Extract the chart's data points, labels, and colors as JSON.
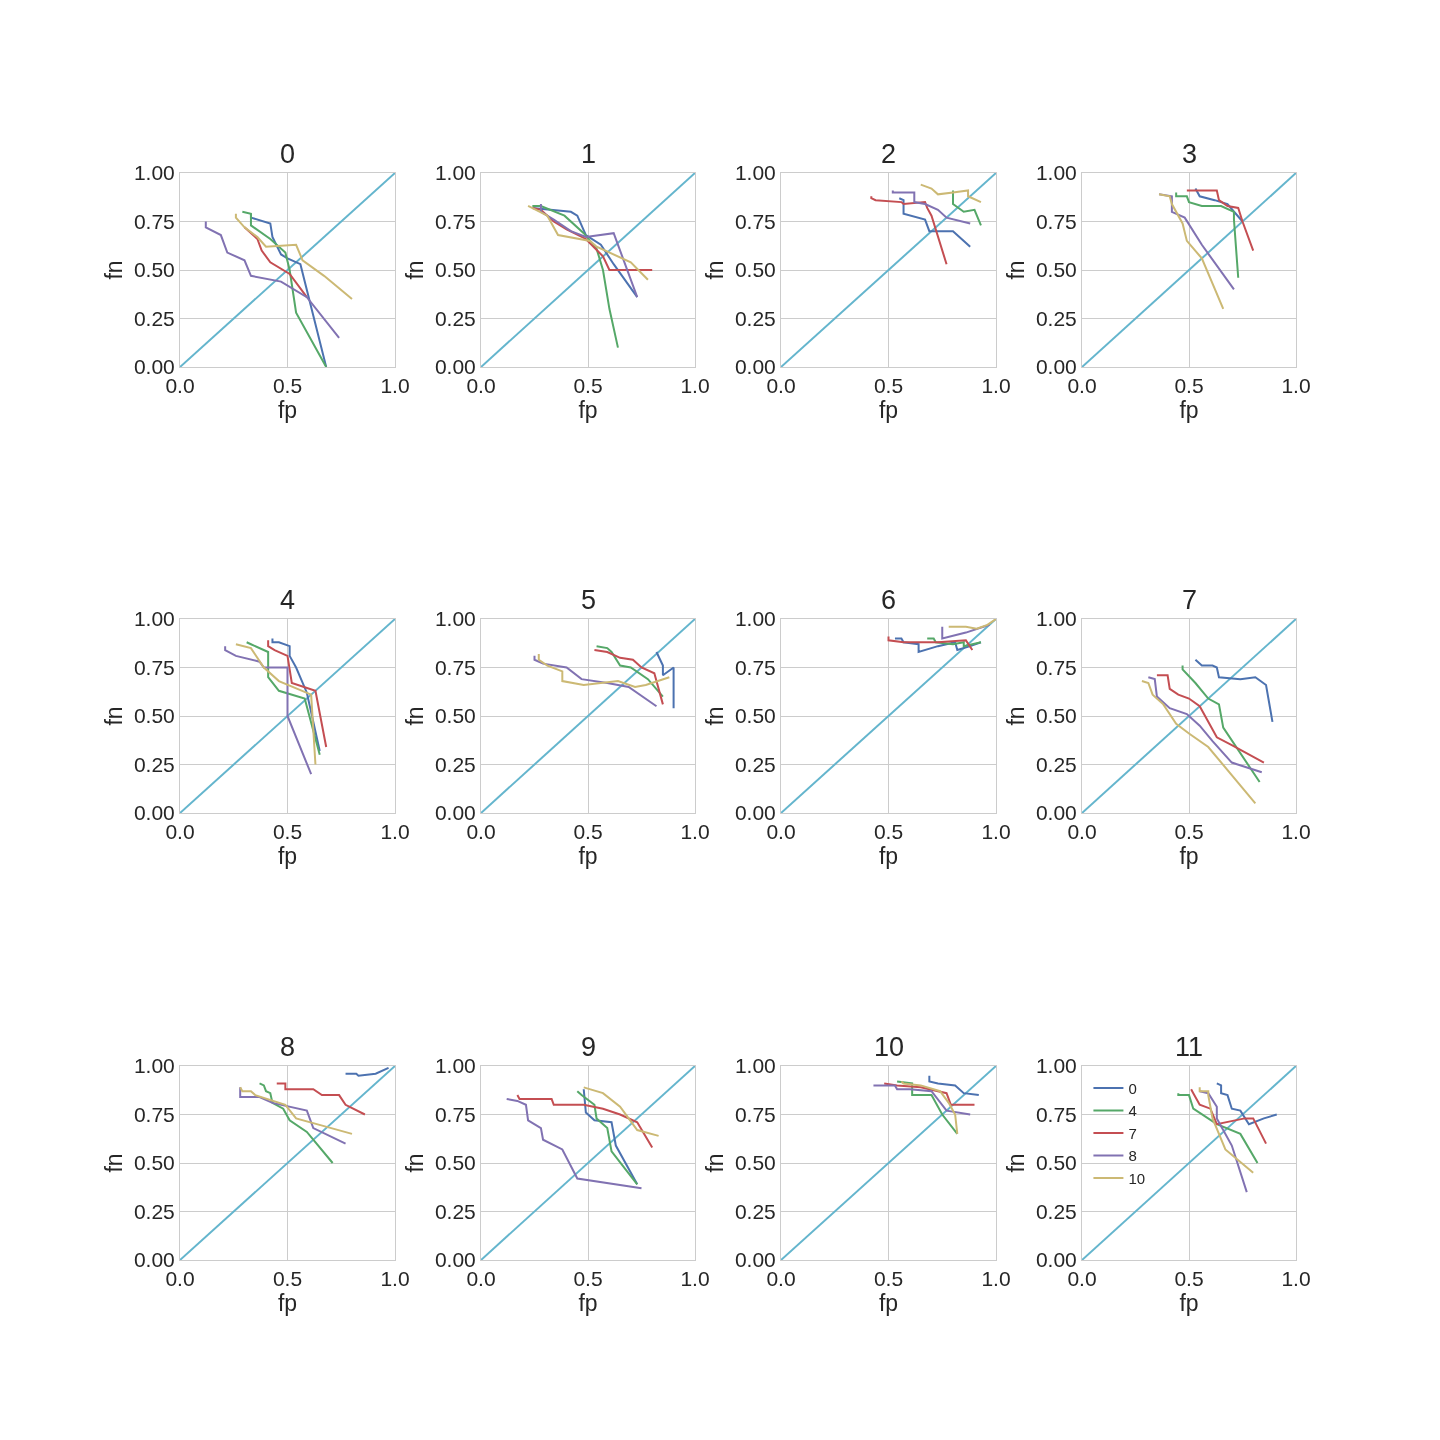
{
  "chart_data": [
    {
      "type": "line",
      "title": "0",
      "xlabel": "fp",
      "ylabel": "fn",
      "xlim": [
        0,
        1
      ],
      "ylim": [
        0,
        1
      ],
      "xticks": [
        {
          "value": 0,
          "label": "0.0"
        },
        {
          "value": 0.5,
          "label": "0.5"
        },
        {
          "value": 1,
          "label": "1.0"
        }
      ],
      "yticks": [
        {
          "value": 0,
          "label": "0.00"
        },
        {
          "value": 0.25,
          "label": "0.25"
        },
        {
          "value": 0.5,
          "label": "0.50"
        },
        {
          "value": 0.75,
          "label": "0.75"
        },
        {
          "value": 1,
          "label": "1.00"
        }
      ],
      "grid": true,
      "series": [
        {
          "color": "#64b5cd",
          "x": [
            0,
            1
          ],
          "values": [
            0,
            1
          ]
        },
        {
          "color": "#4c72b0",
          "x": [
            0.33,
            0.33,
            0.42,
            0.43,
            0.47,
            0.5,
            0.56,
            0.68
          ],
          "values": [
            0.79,
            0.77,
            0.74,
            0.67,
            0.58,
            0.56,
            0.53,
            0.0
          ]
        },
        {
          "color": "#55a868",
          "x": [
            0.29,
            0.33,
            0.33,
            0.42,
            0.49,
            0.51,
            0.54,
            0.68
          ],
          "values": [
            0.8,
            0.79,
            0.73,
            0.66,
            0.59,
            0.5,
            0.28,
            0.0
          ]
        },
        {
          "color": "#c44e52",
          "x": [
            0.3,
            0.36,
            0.38,
            0.42,
            0.51,
            0.59
          ],
          "values": [
            0.72,
            0.66,
            0.6,
            0.54,
            0.48,
            0.36
          ]
        },
        {
          "color": "#8172b2",
          "x": [
            0.12,
            0.12,
            0.19,
            0.22,
            0.3,
            0.33,
            0.47,
            0.59,
            0.74
          ],
          "values": [
            0.75,
            0.72,
            0.68,
            0.59,
            0.55,
            0.47,
            0.44,
            0.36,
            0.15
          ]
        },
        {
          "color": "#ccb974",
          "x": [
            0.26,
            0.26,
            0.3,
            0.36,
            0.4,
            0.54,
            0.57,
            0.67,
            0.8
          ],
          "values": [
            0.79,
            0.77,
            0.72,
            0.67,
            0.62,
            0.63,
            0.55,
            0.47,
            0.35
          ]
        }
      ]
    },
    {
      "type": "line",
      "title": "1",
      "xlabel": "fp",
      "ylabel": "fn",
      "xlim": [
        0,
        1
      ],
      "ylim": [
        0,
        1
      ],
      "xticks": [
        {
          "value": 0,
          "label": "0.0"
        },
        {
          "value": 0.5,
          "label": "0.5"
        },
        {
          "value": 1,
          "label": "1.0"
        }
      ],
      "yticks": [
        {
          "value": 0,
          "label": "0.00"
        },
        {
          "value": 0.25,
          "label": "0.25"
        },
        {
          "value": 0.5,
          "label": "0.50"
        },
        {
          "value": 0.75,
          "label": "0.75"
        },
        {
          "value": 1,
          "label": "1.00"
        }
      ],
      "grid": true,
      "series": [
        {
          "color": "#64b5cd",
          "x": [
            0,
            1
          ],
          "values": [
            0,
            1
          ]
        },
        {
          "color": "#4c72b0",
          "x": [
            0.24,
            0.42,
            0.45,
            0.49,
            0.56,
            0.62,
            0.73
          ],
          "values": [
            0.82,
            0.8,
            0.78,
            0.68,
            0.63,
            0.53,
            0.36
          ]
        },
        {
          "color": "#55a868",
          "x": [
            0.24,
            0.28,
            0.39,
            0.48,
            0.54,
            0.57,
            0.6,
            0.64
          ],
          "values": [
            0.83,
            0.83,
            0.78,
            0.69,
            0.61,
            0.5,
            0.3,
            0.1
          ]
        },
        {
          "color": "#c44e52",
          "x": [
            0.24,
            0.28,
            0.34,
            0.4,
            0.49,
            0.57,
            0.6,
            0.8
          ],
          "values": [
            0.82,
            0.81,
            0.75,
            0.71,
            0.66,
            0.57,
            0.5,
            0.5
          ]
        },
        {
          "color": "#8172b2",
          "x": [
            0.28,
            0.28,
            0.34,
            0.42,
            0.49,
            0.62,
            0.73
          ],
          "values": [
            0.84,
            0.8,
            0.76,
            0.7,
            0.67,
            0.69,
            0.36
          ]
        },
        {
          "color": "#ccb974",
          "x": [
            0.22,
            0.31,
            0.36,
            0.51,
            0.54,
            0.7,
            0.78
          ],
          "values": [
            0.83,
            0.78,
            0.68,
            0.65,
            0.62,
            0.54,
            0.45
          ]
        }
      ]
    },
    {
      "type": "line",
      "title": "2",
      "xlabel": "fp",
      "ylabel": "fn",
      "xlim": [
        0,
        1
      ],
      "ylim": [
        0,
        1
      ],
      "xticks": [
        {
          "value": 0,
          "label": "0.0"
        },
        {
          "value": 0.5,
          "label": "0.5"
        },
        {
          "value": 1,
          "label": "1.0"
        }
      ],
      "yticks": [
        {
          "value": 0,
          "label": "0.00"
        },
        {
          "value": 0.25,
          "label": "0.25"
        },
        {
          "value": 0.5,
          "label": "0.50"
        },
        {
          "value": 0.75,
          "label": "0.75"
        },
        {
          "value": 1,
          "label": "1.00"
        }
      ],
      "grid": true,
      "series": [
        {
          "color": "#64b5cd",
          "x": [
            0,
            1
          ],
          "values": [
            0,
            1
          ]
        },
        {
          "color": "#4c72b0",
          "x": [
            0.55,
            0.57,
            0.57,
            0.67,
            0.69,
            0.8,
            0.88
          ],
          "values": [
            0.87,
            0.86,
            0.79,
            0.76,
            0.7,
            0.7,
            0.62
          ]
        },
        {
          "color": "#55a868",
          "x": [
            0.8,
            0.8,
            0.85,
            0.9,
            0.93
          ],
          "values": [
            0.91,
            0.84,
            0.8,
            0.81,
            0.73
          ]
        },
        {
          "color": "#c44e52",
          "x": [
            0.42,
            0.42,
            0.44,
            0.56,
            0.57,
            0.67,
            0.68,
            0.7,
            0.77
          ],
          "values": [
            0.88,
            0.87,
            0.86,
            0.85,
            0.84,
            0.85,
            0.82,
            0.78,
            0.53
          ]
        },
        {
          "color": "#8172b2",
          "x": [
            0.52,
            0.52,
            0.62,
            0.62,
            0.67,
            0.73,
            0.77,
            0.88
          ],
          "values": [
            0.91,
            0.9,
            0.9,
            0.85,
            0.84,
            0.81,
            0.77,
            0.74
          ]
        },
        {
          "color": "#ccb974",
          "x": [
            0.65,
            0.7,
            0.73,
            0.8,
            0.87,
            0.87,
            0.93
          ],
          "values": [
            0.94,
            0.92,
            0.89,
            0.9,
            0.91,
            0.88,
            0.85
          ]
        }
      ]
    },
    {
      "type": "line",
      "title": "3",
      "xlabel": "fp",
      "ylabel": "fn",
      "xlim": [
        0,
        1
      ],
      "ylim": [
        0,
        1
      ],
      "xticks": [
        {
          "value": 0,
          "label": "0.0"
        },
        {
          "value": 0.5,
          "label": "0.5"
        },
        {
          "value": 1,
          "label": "1.0"
        }
      ],
      "yticks": [
        {
          "value": 0,
          "label": "0.00"
        },
        {
          "value": 0.25,
          "label": "0.25"
        },
        {
          "value": 0.5,
          "label": "0.50"
        },
        {
          "value": 0.75,
          "label": "0.75"
        },
        {
          "value": 1,
          "label": "1.00"
        }
      ],
      "grid": true,
      "series": [
        {
          "color": "#64b5cd",
          "x": [
            0,
            1
          ],
          "values": [
            0,
            1
          ]
        },
        {
          "color": "#4c72b0",
          "x": [
            0.53,
            0.55,
            0.62,
            0.68,
            0.75
          ],
          "values": [
            0.92,
            0.88,
            0.86,
            0.84,
            0.75
          ]
        },
        {
          "color": "#55a868",
          "x": [
            0.44,
            0.44,
            0.49,
            0.5,
            0.56,
            0.65,
            0.71,
            0.71,
            0.73
          ],
          "values": [
            0.9,
            0.88,
            0.88,
            0.85,
            0.83,
            0.83,
            0.8,
            0.76,
            0.46
          ]
        },
        {
          "color": "#c44e52",
          "x": [
            0.49,
            0.63,
            0.64,
            0.68,
            0.73,
            0.75,
            0.8
          ],
          "values": [
            0.91,
            0.91,
            0.86,
            0.83,
            0.82,
            0.75,
            0.6
          ]
        },
        {
          "color": "#8172b2",
          "x": [
            0.36,
            0.42,
            0.42,
            0.48,
            0.56,
            0.71
          ],
          "values": [
            0.89,
            0.88,
            0.8,
            0.77,
            0.63,
            0.4
          ]
        },
        {
          "color": "#ccb974",
          "x": [
            0.36,
            0.41,
            0.42,
            0.47,
            0.49,
            0.56,
            0.66
          ],
          "values": [
            0.89,
            0.88,
            0.84,
            0.74,
            0.65,
            0.56,
            0.3
          ]
        }
      ]
    },
    {
      "type": "line",
      "title": "4",
      "xlabel": "fp",
      "ylabel": "fn",
      "xlim": [
        0,
        1
      ],
      "ylim": [
        0,
        1
      ],
      "xticks": [
        {
          "value": 0,
          "label": "0.0"
        },
        {
          "value": 0.5,
          "label": "0.5"
        },
        {
          "value": 1,
          "label": "1.0"
        }
      ],
      "yticks": [
        {
          "value": 0,
          "label": "0.00"
        },
        {
          "value": 0.25,
          "label": "0.25"
        },
        {
          "value": 0.5,
          "label": "0.50"
        },
        {
          "value": 0.75,
          "label": "0.75"
        },
        {
          "value": 1,
          "label": "1.00"
        }
      ],
      "grid": true,
      "series": [
        {
          "color": "#64b5cd",
          "x": [
            0,
            1
          ],
          "values": [
            0,
            1
          ]
        },
        {
          "color": "#4c72b0",
          "x": [
            0.43,
            0.43,
            0.46,
            0.51,
            0.51,
            0.54,
            0.59,
            0.65
          ],
          "values": [
            0.9,
            0.88,
            0.88,
            0.86,
            0.81,
            0.75,
            0.62,
            0.32
          ]
        },
        {
          "color": "#55a868",
          "x": [
            0.31,
            0.33,
            0.41,
            0.41,
            0.46,
            0.58,
            0.65
          ],
          "values": [
            0.88,
            0.87,
            0.83,
            0.7,
            0.63,
            0.59,
            0.3
          ]
        },
        {
          "color": "#c44e52",
          "x": [
            0.41,
            0.41,
            0.44,
            0.5,
            0.52,
            0.63,
            0.68
          ],
          "values": [
            0.89,
            0.86,
            0.84,
            0.81,
            0.67,
            0.63,
            0.34
          ]
        },
        {
          "color": "#8172b2",
          "x": [
            0.21,
            0.21,
            0.26,
            0.37,
            0.39,
            0.5,
            0.5,
            0.61
          ],
          "values": [
            0.86,
            0.84,
            0.81,
            0.78,
            0.75,
            0.75,
            0.5,
            0.2
          ]
        },
        {
          "color": "#ccb974",
          "x": [
            0.26,
            0.33,
            0.39,
            0.46,
            0.61,
            0.63
          ],
          "values": [
            0.87,
            0.85,
            0.75,
            0.68,
            0.61,
            0.25
          ]
        }
      ]
    },
    {
      "type": "line",
      "title": "5",
      "xlabel": "fp",
      "ylabel": "fn",
      "xlim": [
        0,
        1
      ],
      "ylim": [
        0,
        1
      ],
      "xticks": [
        {
          "value": 0,
          "label": "0.0"
        },
        {
          "value": 0.5,
          "label": "0.5"
        },
        {
          "value": 1,
          "label": "1.0"
        }
      ],
      "yticks": [
        {
          "value": 0,
          "label": "0.00"
        },
        {
          "value": 0.25,
          "label": "0.25"
        },
        {
          "value": 0.5,
          "label": "0.50"
        },
        {
          "value": 0.75,
          "label": "0.75"
        },
        {
          "value": 1,
          "label": "1.00"
        }
      ],
      "grid": true,
      "series": [
        {
          "color": "#64b5cd",
          "x": [
            0,
            1
          ],
          "values": [
            0,
            1
          ]
        },
        {
          "color": "#4c72b0",
          "x": [
            0.82,
            0.85,
            0.85,
            0.9,
            0.9
          ],
          "values": [
            0.83,
            0.76,
            0.71,
            0.75,
            0.54
          ]
        },
        {
          "color": "#55a868",
          "x": [
            0.54,
            0.59,
            0.61,
            0.65,
            0.7,
            0.78,
            0.85
          ],
          "values": [
            0.86,
            0.85,
            0.83,
            0.76,
            0.75,
            0.69,
            0.6
          ]
        },
        {
          "color": "#c44e52",
          "x": [
            0.53,
            0.59,
            0.65,
            0.71,
            0.75,
            0.81,
            0.85
          ],
          "values": [
            0.84,
            0.83,
            0.8,
            0.79,
            0.75,
            0.72,
            0.56
          ]
        },
        {
          "color": "#8172b2",
          "x": [
            0.25,
            0.25,
            0.29,
            0.4,
            0.47,
            0.59,
            0.69,
            0.82
          ],
          "values": [
            0.81,
            0.79,
            0.77,
            0.75,
            0.69,
            0.67,
            0.65,
            0.55
          ]
        },
        {
          "color": "#ccb974",
          "x": [
            0.27,
            0.27,
            0.31,
            0.38,
            0.38,
            0.48,
            0.64,
            0.72,
            0.77,
            0.88
          ],
          "values": [
            0.82,
            0.79,
            0.76,
            0.73,
            0.68,
            0.66,
            0.68,
            0.65,
            0.66,
            0.7
          ]
        }
      ]
    },
    {
      "type": "line",
      "title": "6",
      "xlabel": "fp",
      "ylabel": "fn",
      "xlim": [
        0,
        1
      ],
      "ylim": [
        0,
        1
      ],
      "xticks": [
        {
          "value": 0,
          "label": "0.0"
        },
        {
          "value": 0.5,
          "label": "0.5"
        },
        {
          "value": 1,
          "label": "1.0"
        }
      ],
      "yticks": [
        {
          "value": 0,
          "label": "0.00"
        },
        {
          "value": 0.25,
          "label": "0.25"
        },
        {
          "value": 0.5,
          "label": "0.50"
        },
        {
          "value": 0.75,
          "label": "0.75"
        },
        {
          "value": 1,
          "label": "1.00"
        }
      ],
      "grid": true,
      "series": [
        {
          "color": "#64b5cd",
          "x": [
            0,
            1
          ],
          "values": [
            0,
            1
          ]
        },
        {
          "color": "#4c72b0",
          "x": [
            0.53,
            0.56,
            0.57,
            0.64,
            0.64,
            0.73,
            0.81,
            0.82,
            0.88,
            0.93
          ],
          "values": [
            0.9,
            0.9,
            0.88,
            0.87,
            0.83,
            0.86,
            0.88,
            0.84,
            0.86,
            0.88
          ]
        },
        {
          "color": "#55a868",
          "x": [
            0.68,
            0.71,
            0.72,
            0.8,
            0.85,
            0.85,
            0.93
          ],
          "values": [
            0.9,
            0.9,
            0.88,
            0.87,
            0.88,
            0.86,
            0.88
          ]
        },
        {
          "color": "#c44e52",
          "x": [
            0.5,
            0.5,
            0.57,
            0.73,
            0.86,
            0.89
          ],
          "values": [
            0.91,
            0.89,
            0.88,
            0.88,
            0.89,
            0.84
          ]
        },
        {
          "color": "#8172b2",
          "x": [
            0.75,
            0.75,
            0.86,
            0.97
          ],
          "values": [
            0.96,
            0.9,
            0.93,
            0.97
          ]
        },
        {
          "color": "#ccb974",
          "x": [
            0.78,
            0.84,
            0.86,
            0.91,
            0.96,
            1.0
          ],
          "values": [
            0.96,
            0.96,
            0.96,
            0.95,
            0.97,
            1.0
          ]
        }
      ]
    },
    {
      "type": "line",
      "title": "7",
      "xlabel": "fp",
      "ylabel": "fn",
      "xlim": [
        0,
        1
      ],
      "ylim": [
        0,
        1
      ],
      "xticks": [
        {
          "value": 0,
          "label": "0.0"
        },
        {
          "value": 0.5,
          "label": "0.5"
        },
        {
          "value": 1,
          "label": "1.0"
        }
      ],
      "yticks": [
        {
          "value": 0,
          "label": "0.00"
        },
        {
          "value": 0.25,
          "label": "0.25"
        },
        {
          "value": 0.5,
          "label": "0.50"
        },
        {
          "value": 0.75,
          "label": "0.75"
        },
        {
          "value": 1,
          "label": "1.00"
        }
      ],
      "grid": true,
      "series": [
        {
          "color": "#64b5cd",
          "x": [
            0,
            1
          ],
          "values": [
            0,
            1
          ]
        },
        {
          "color": "#4c72b0",
          "x": [
            0.53,
            0.56,
            0.61,
            0.63,
            0.64,
            0.74,
            0.81,
            0.86,
            0.89
          ],
          "values": [
            0.79,
            0.76,
            0.76,
            0.75,
            0.7,
            0.69,
            0.7,
            0.66,
            0.47
          ]
        },
        {
          "color": "#55a868",
          "x": [
            0.47,
            0.47,
            0.53,
            0.59,
            0.64,
            0.66,
            0.83
          ],
          "values": [
            0.76,
            0.74,
            0.67,
            0.59,
            0.56,
            0.44,
            0.16
          ]
        },
        {
          "color": "#c44e52",
          "x": [
            0.35,
            0.4,
            0.41,
            0.45,
            0.5,
            0.55,
            0.63,
            0.7,
            0.85
          ],
          "values": [
            0.71,
            0.71,
            0.64,
            0.61,
            0.59,
            0.55,
            0.39,
            0.35,
            0.26
          ]
        },
        {
          "color": "#8172b2",
          "x": [
            0.31,
            0.34,
            0.35,
            0.41,
            0.49,
            0.55,
            0.61,
            0.7,
            0.84
          ],
          "values": [
            0.7,
            0.69,
            0.6,
            0.54,
            0.51,
            0.45,
            0.37,
            0.26,
            0.21
          ]
        },
        {
          "color": "#ccb974",
          "x": [
            0.28,
            0.31,
            0.33,
            0.38,
            0.44,
            0.5,
            0.59,
            0.81
          ],
          "values": [
            0.68,
            0.67,
            0.61,
            0.56,
            0.46,
            0.41,
            0.34,
            0.05
          ]
        }
      ]
    },
    {
      "type": "line",
      "title": "8",
      "xlabel": "fp",
      "ylabel": "fn",
      "xlim": [
        0,
        1
      ],
      "ylim": [
        0,
        1
      ],
      "xticks": [
        {
          "value": 0,
          "label": "0.0"
        },
        {
          "value": 0.5,
          "label": "0.5"
        },
        {
          "value": 1,
          "label": "1.0"
        }
      ],
      "yticks": [
        {
          "value": 0,
          "label": "0.00"
        },
        {
          "value": 0.25,
          "label": "0.25"
        },
        {
          "value": 0.5,
          "label": "0.50"
        },
        {
          "value": 0.75,
          "label": "0.75"
        },
        {
          "value": 1,
          "label": "1.00"
        }
      ],
      "grid": true,
      "series": [
        {
          "color": "#64b5cd",
          "x": [
            0,
            1
          ],
          "values": [
            0,
            1
          ]
        },
        {
          "color": "#4c72b0",
          "x": [
            0.77,
            0.82,
            0.83,
            0.91,
            0.97
          ],
          "values": [
            0.96,
            0.96,
            0.95,
            0.96,
            0.99
          ]
        },
        {
          "color": "#55a868",
          "x": [
            0.37,
            0.39,
            0.4,
            0.42,
            0.43,
            0.48,
            0.51,
            0.59,
            0.71
          ],
          "values": [
            0.91,
            0.9,
            0.87,
            0.86,
            0.81,
            0.78,
            0.72,
            0.66,
            0.5
          ]
        },
        {
          "color": "#c44e52",
          "x": [
            0.45,
            0.49,
            0.49,
            0.62,
            0.66,
            0.74,
            0.77,
            0.86
          ],
          "values": [
            0.91,
            0.91,
            0.88,
            0.88,
            0.85,
            0.85,
            0.8,
            0.75
          ]
        },
        {
          "color": "#8172b2",
          "x": [
            0.28,
            0.28,
            0.37,
            0.43,
            0.59,
            0.62,
            0.77
          ],
          "values": [
            0.89,
            0.84,
            0.84,
            0.81,
            0.77,
            0.68,
            0.6
          ]
        },
        {
          "color": "#ccb974",
          "x": [
            0.28,
            0.29,
            0.33,
            0.35,
            0.49,
            0.54,
            0.67,
            0.8
          ],
          "values": [
            0.89,
            0.87,
            0.87,
            0.85,
            0.8,
            0.73,
            0.69,
            0.65
          ]
        }
      ]
    },
    {
      "type": "line",
      "title": "9",
      "xlabel": "fp",
      "ylabel": "fn",
      "xlim": [
        0,
        1
      ],
      "ylim": [
        0,
        1
      ],
      "xticks": [
        {
          "value": 0,
          "label": "0.0"
        },
        {
          "value": 0.5,
          "label": "0.5"
        },
        {
          "value": 1,
          "label": "1.0"
        }
      ],
      "yticks": [
        {
          "value": 0,
          "label": "0.00"
        },
        {
          "value": 0.25,
          "label": "0.25"
        },
        {
          "value": 0.5,
          "label": "0.50"
        },
        {
          "value": 0.75,
          "label": "0.75"
        },
        {
          "value": 1,
          "label": "1.00"
        }
      ],
      "grid": true,
      "series": [
        {
          "color": "#64b5cd",
          "x": [
            0,
            1
          ],
          "values": [
            0,
            1
          ]
        },
        {
          "color": "#4c72b0",
          "x": [
            0.48,
            0.49,
            0.53,
            0.61,
            0.63,
            0.73
          ],
          "values": [
            0.88,
            0.76,
            0.72,
            0.71,
            0.59,
            0.39
          ]
        },
        {
          "color": "#55a868",
          "x": [
            0.45,
            0.47,
            0.53,
            0.54,
            0.59,
            0.61,
            0.73
          ],
          "values": [
            0.87,
            0.85,
            0.8,
            0.73,
            0.68,
            0.56,
            0.39
          ]
        },
        {
          "color": "#c44e52",
          "x": [
            0.17,
            0.18,
            0.33,
            0.34,
            0.48,
            0.57,
            0.65,
            0.73,
            0.8
          ],
          "values": [
            0.85,
            0.83,
            0.83,
            0.8,
            0.8,
            0.78,
            0.75,
            0.71,
            0.58
          ]
        },
        {
          "color": "#8172b2",
          "x": [
            0.12,
            0.17,
            0.21,
            0.22,
            0.28,
            0.29,
            0.38,
            0.45,
            0.75
          ],
          "values": [
            0.83,
            0.82,
            0.8,
            0.72,
            0.68,
            0.62,
            0.57,
            0.42,
            0.37
          ]
        },
        {
          "color": "#ccb974",
          "x": [
            0.48,
            0.57,
            0.65,
            0.69,
            0.73,
            0.83
          ],
          "values": [
            0.89,
            0.86,
            0.79,
            0.73,
            0.67,
            0.64
          ]
        }
      ]
    },
    {
      "type": "line",
      "title": "10",
      "xlabel": "fp",
      "ylabel": "fn",
      "xlim": [
        0,
        1
      ],
      "ylim": [
        0,
        1
      ],
      "xticks": [
        {
          "value": 0,
          "label": "0.0"
        },
        {
          "value": 0.5,
          "label": "0.5"
        },
        {
          "value": 1,
          "label": "1.0"
        }
      ],
      "yticks": [
        {
          "value": 0,
          "label": "0.00"
        },
        {
          "value": 0.25,
          "label": "0.25"
        },
        {
          "value": 0.5,
          "label": "0.50"
        },
        {
          "value": 0.75,
          "label": "0.75"
        },
        {
          "value": 1,
          "label": "1.00"
        }
      ],
      "grid": true,
      "series": [
        {
          "color": "#64b5cd",
          "x": [
            0,
            1
          ],
          "values": [
            0,
            1
          ]
        },
        {
          "color": "#4c72b0",
          "x": [
            0.69,
            0.69,
            0.73,
            0.81,
            0.85,
            0.92
          ],
          "values": [
            0.95,
            0.92,
            0.91,
            0.9,
            0.86,
            0.85
          ]
        },
        {
          "color": "#55a868",
          "x": [
            0.54,
            0.61,
            0.61,
            0.7,
            0.75,
            0.82
          ],
          "values": [
            0.92,
            0.91,
            0.85,
            0.85,
            0.75,
            0.65
          ]
        },
        {
          "color": "#c44e52",
          "x": [
            0.48,
            0.54,
            0.65,
            0.77,
            0.79,
            0.9
          ],
          "values": [
            0.91,
            0.9,
            0.89,
            0.86,
            0.8,
            0.8
          ]
        },
        {
          "color": "#8172b2",
          "x": [
            0.43,
            0.53,
            0.54,
            0.6,
            0.7,
            0.77,
            0.88
          ],
          "values": [
            0.9,
            0.9,
            0.88,
            0.88,
            0.87,
            0.77,
            0.75
          ]
        },
        {
          "color": "#ccb974",
          "x": [
            0.56,
            0.57,
            0.65,
            0.74,
            0.78,
            0.81,
            0.82
          ],
          "values": [
            0.92,
            0.91,
            0.9,
            0.87,
            0.81,
            0.75,
            0.65
          ]
        }
      ]
    },
    {
      "type": "line",
      "title": "11",
      "xlabel": "fp",
      "ylabel": "fn",
      "xlim": [
        0,
        1
      ],
      "ylim": [
        0,
        1
      ],
      "xticks": [
        {
          "value": 0,
          "label": "0.0"
        },
        {
          "value": 0.5,
          "label": "0.5"
        },
        {
          "value": 1,
          "label": "1.0"
        }
      ],
      "yticks": [
        {
          "value": 0,
          "label": "0.00"
        },
        {
          "value": 0.25,
          "label": "0.25"
        },
        {
          "value": 0.5,
          "label": "0.50"
        },
        {
          "value": 0.75,
          "label": "0.75"
        },
        {
          "value": 1,
          "label": "1.00"
        }
      ],
      "grid": true,
      "legend": "top left",
      "series": [
        {
          "color": "#64b5cd",
          "x": [
            0,
            1
          ],
          "values": [
            0,
            1
          ]
        },
        {
          "name": "0",
          "color": "#4c72b0",
          "x": [
            0.63,
            0.65,
            0.65,
            0.68,
            0.7,
            0.74,
            0.78,
            0.85,
            0.91
          ],
          "values": [
            0.91,
            0.9,
            0.86,
            0.85,
            0.78,
            0.77,
            0.7,
            0.73,
            0.75
          ]
        },
        {
          "name": "4",
          "color": "#55a868",
          "x": [
            0.45,
            0.45,
            0.5,
            0.52,
            0.63,
            0.74,
            0.82
          ],
          "values": [
            0.86,
            0.85,
            0.85,
            0.78,
            0.7,
            0.65,
            0.5
          ]
        },
        {
          "name": "7",
          "color": "#c44e52",
          "x": [
            0.51,
            0.52,
            0.55,
            0.6,
            0.63,
            0.76,
            0.8,
            0.86
          ],
          "values": [
            0.88,
            0.86,
            0.8,
            0.78,
            0.7,
            0.73,
            0.73,
            0.6
          ]
        },
        {
          "name": "8",
          "color": "#8172b2",
          "x": [
            0.55,
            0.59,
            0.63,
            0.63,
            0.7,
            0.77
          ],
          "values": [
            0.87,
            0.86,
            0.79,
            0.73,
            0.59,
            0.35
          ]
        },
        {
          "name": "10",
          "color": "#ccb974",
          "x": [
            0.55,
            0.55,
            0.59,
            0.59,
            0.61,
            0.67,
            0.8
          ],
          "values": [
            0.89,
            0.87,
            0.87,
            0.85,
            0.73,
            0.57,
            0.45
          ]
        }
      ]
    }
  ]
}
